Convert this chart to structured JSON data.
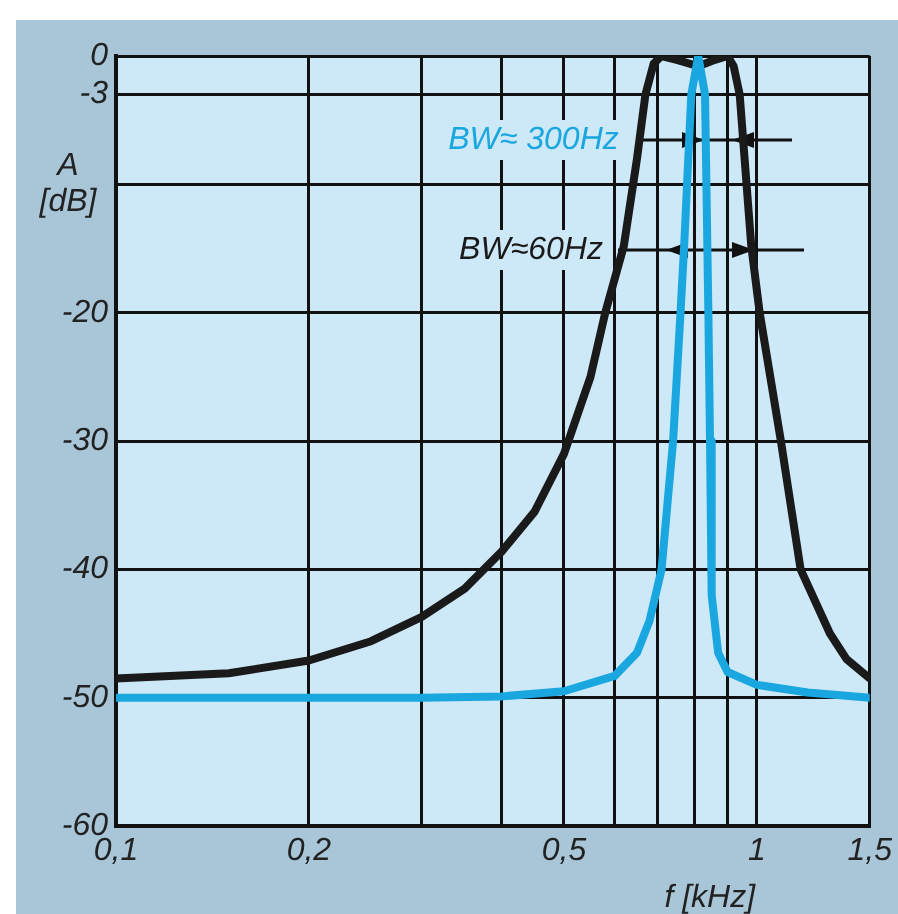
{
  "chart_data": {
    "type": "line",
    "xlabel": "f [kHz]",
    "ylabel": "A [dB]",
    "log": "x",
    "grid": true,
    "marker": "none",
    "line_style": "solid",
    "xlim": [
      0.1,
      1.5
    ],
    "ylim": [
      -60,
      0
    ],
    "xticks": [
      {
        "value": 0.1,
        "label": "0,1"
      },
      {
        "value": 0.2,
        "label": "0,2"
      },
      {
        "value": 0.3,
        "label": null
      },
      {
        "value": 0.4,
        "label": null
      },
      {
        "value": 0.5,
        "label": "0,5"
      },
      {
        "value": 0.6,
        "label": null
      },
      {
        "value": 0.7,
        "label": null
      },
      {
        "value": 0.8,
        "label": null
      },
      {
        "value": 0.9,
        "label": null
      },
      1,
      {
        "value": 1.5,
        "label": "1,5"
      }
    ],
    "yticks": [
      0,
      -3,
      {
        "value": -10,
        "label": null
      },
      -20,
      -30,
      -40,
      -50,
      -60
    ],
    "series": [
      {
        "color": "#1aa7e0",
        "x": [
          0.1,
          0.3,
          0.4,
          0.5,
          0.6,
          0.65,
          0.68,
          0.71,
          0.74,
          0.76,
          0.77,
          0.79,
          0.81,
          0.83,
          0.84,
          0.845,
          0.85,
          0.87,
          0.9,
          1,
          1.2,
          1.5
        ],
        "values": [
          -50,
          -50,
          -49.9,
          -49.5,
          -48.3,
          -46.5,
          -44,
          -40,
          -30,
          -20,
          -14.8,
          -3,
          0,
          -3,
          -20,
          -30,
          -42,
          -46.5,
          -48,
          -49,
          -49.6,
          -50
        ]
      },
      {
        "color": "#1a1a1a",
        "x": [
          0.1,
          0.15,
          0.2,
          0.25,
          0.3,
          0.35,
          0.4,
          0.45,
          0.5,
          0.55,
          0.58,
          0.62,
          0.65,
          0.67,
          0.69,
          0.71,
          0.75,
          0.81,
          0.86,
          0.9,
          0.92,
          0.94,
          0.98,
          1.01,
          1.09,
          1.17,
          1.3,
          1.38,
          1.5
        ],
        "values": [
          -48.5,
          -48.1,
          -47.1,
          -45.6,
          -43.7,
          -41.5,
          -38.6,
          -35.5,
          -31,
          -25,
          -20,
          -14.8,
          -8,
          -3,
          -0.6,
          0,
          -0.3,
          -0.8,
          -0.3,
          0,
          -0.8,
          -3,
          -14.8,
          -20,
          -30,
          -40,
          -45,
          -47,
          -48.5
        ]
      }
    ],
    "annotations": [
      "BW≈ 300Hz",
      "BW≈60Hz"
    ]
  }
}
